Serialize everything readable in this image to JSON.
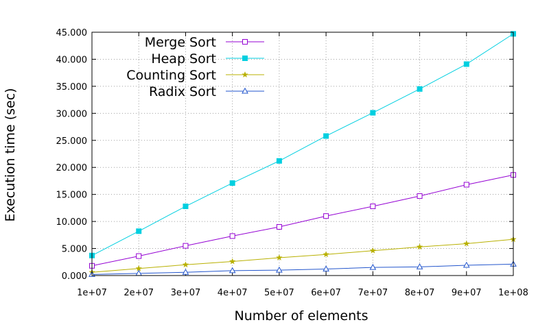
{
  "chart_data": {
    "type": "line",
    "xlabel": "Number of elements",
    "ylabel": "Execution time (sec)",
    "x": [
      10000000,
      20000000,
      30000000,
      40000000,
      50000000,
      60000000,
      70000000,
      80000000,
      90000000,
      100000000
    ],
    "x_tick_labels": [
      "1e+07",
      "2e+07",
      "3e+07",
      "4e+07",
      "5e+07",
      "6e+07",
      "7e+07",
      "8e+07",
      "9e+07",
      "1e+08"
    ],
    "xlim": [
      10000000,
      100000000
    ],
    "y_ticks": [
      0,
      5,
      10,
      15,
      20,
      25,
      30,
      35,
      40,
      45
    ],
    "y_tick_labels": [
      "0.000",
      "5.000",
      "10.000",
      "15.000",
      "20.000",
      "25.000",
      "30.000",
      "35.000",
      "40.000",
      "45.000"
    ],
    "ylim": [
      0,
      45
    ],
    "grid": true,
    "legend_position": "top-left",
    "series": [
      {
        "name": "Merge Sort",
        "color": "#9400d3",
        "marker": "open-square",
        "values": [
          1.8,
          3.6,
          5.5,
          7.3,
          9.0,
          11.0,
          12.8,
          14.7,
          16.8,
          18.6
        ]
      },
      {
        "name": "Heap Sort",
        "color": "#00cfe0",
        "marker": "filled-square",
        "values": [
          3.7,
          8.2,
          12.8,
          17.1,
          21.2,
          25.8,
          30.1,
          34.5,
          39.1,
          44.7
        ]
      },
      {
        "name": "Counting Sort",
        "color": "#b8b000",
        "marker": "filled-star",
        "values": [
          0.6,
          1.3,
          2.0,
          2.6,
          3.3,
          3.9,
          4.6,
          5.3,
          5.9,
          6.7
        ]
      },
      {
        "name": "Radix Sort",
        "color": "#2255cc",
        "marker": "open-triangle",
        "values": [
          0.2,
          0.4,
          0.6,
          0.9,
          1.0,
          1.2,
          1.5,
          1.6,
          1.9,
          2.1
        ]
      }
    ]
  }
}
